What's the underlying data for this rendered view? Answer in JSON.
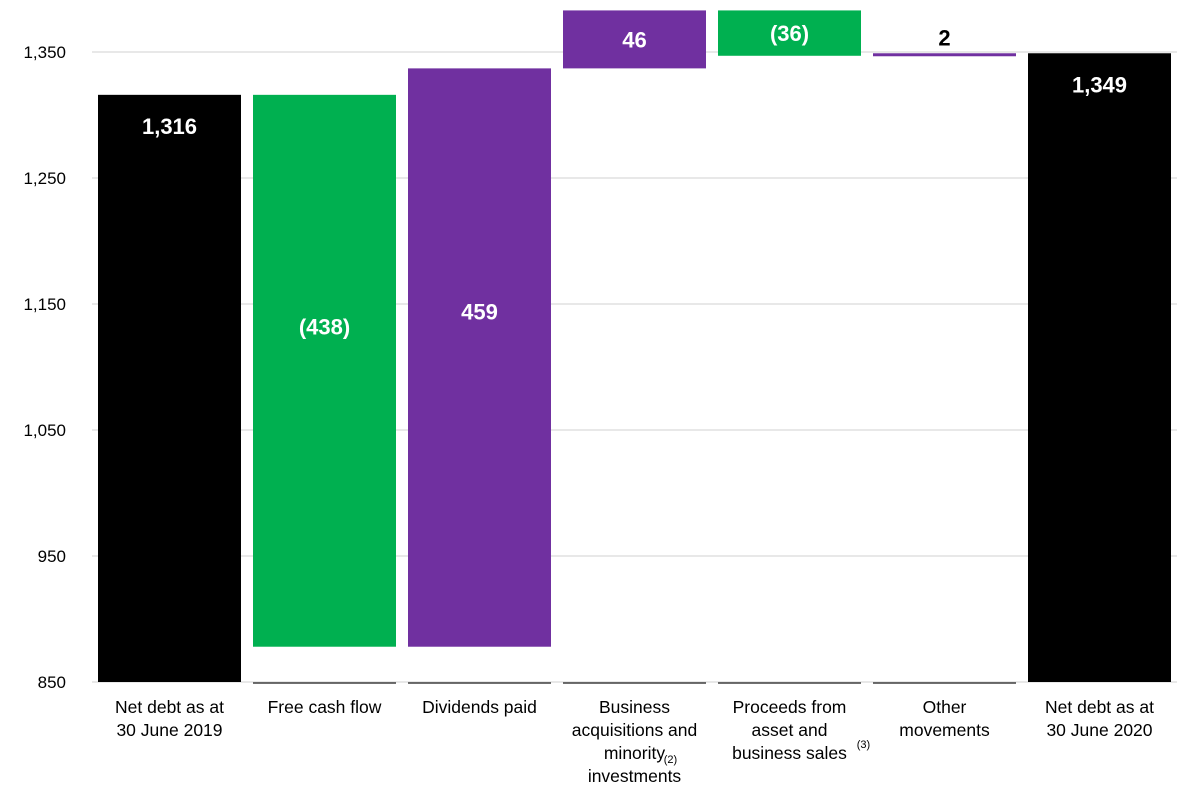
{
  "colors": {
    "total": "#000000",
    "decrease": "#00b050",
    "increase": "#7030a0",
    "grid": "#d9d9d9",
    "label_light": "#ffffff",
    "label_dark": "#000000"
  },
  "chart_data": {
    "type": "bar",
    "subtype": "waterfall",
    "ylim": [
      850,
      1400
    ],
    "yticks": [
      "850",
      "950",
      "1,050",
      "1,150",
      "1,250",
      "1,350"
    ],
    "ytick_values": [
      850,
      950,
      1050,
      1150,
      1250,
      1350
    ],
    "grid": true,
    "categories": [
      {
        "label": [
          "Net debt as at",
          "30 June 2019"
        ],
        "footnote": ""
      },
      {
        "label": [
          "Free cash flow"
        ],
        "footnote": ""
      },
      {
        "label": [
          "Dividends paid"
        ],
        "footnote": ""
      },
      {
        "label": [
          "Business",
          "acquisitions and",
          "minority",
          "investments"
        ],
        "footnote": "(2)"
      },
      {
        "label": [
          "Proceeds from",
          "asset and",
          "business sales"
        ],
        "footnote": "(3)"
      },
      {
        "label": [
          "Other",
          "movements"
        ],
        "footnote": ""
      },
      {
        "label": [
          "Net debt as at",
          "30 June 2020"
        ],
        "footnote": ""
      }
    ],
    "bars": [
      {
        "kind": "total",
        "start": 850,
        "end": 1316,
        "label": "1,316"
      },
      {
        "kind": "decrease",
        "start": 1316,
        "end": 878,
        "label": "(438)"
      },
      {
        "kind": "increase",
        "start": 878,
        "end": 1337,
        "label": "459"
      },
      {
        "kind": "increase",
        "start": 1337,
        "end": 1383,
        "label": "46"
      },
      {
        "kind": "decrease",
        "start": 1383,
        "end": 1347,
        "label": "(36)"
      },
      {
        "kind": "increase",
        "start": 1347,
        "end": 1349,
        "label": "2"
      },
      {
        "kind": "total",
        "start": 850,
        "end": 1349,
        "label": "1,349"
      }
    ]
  }
}
